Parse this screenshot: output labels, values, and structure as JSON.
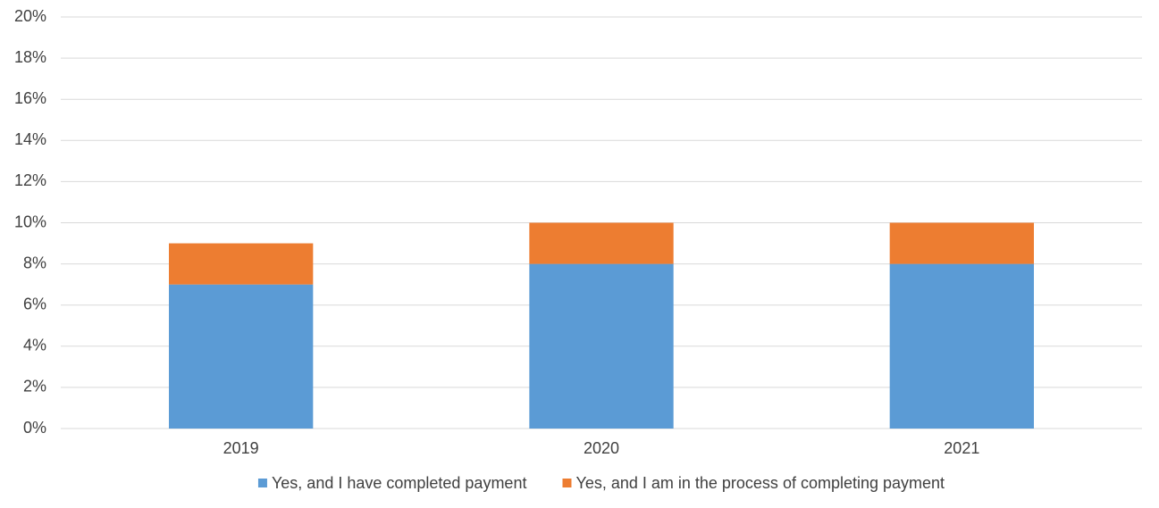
{
  "chart_data": {
    "type": "stacked_bar",
    "categories": [
      "2019",
      "2020",
      "2021"
    ],
    "series": [
      {
        "name": "Yes, and I have completed payment",
        "color": "#5b9bd5",
        "values": [
          7,
          8,
          8
        ]
      },
      {
        "name": "Yes, and I am in the process of completing payment",
        "color": "#ed7d31",
        "values": [
          2,
          2,
          2
        ]
      }
    ],
    "ylim": [
      0,
      20
    ],
    "yticks": [
      {
        "value": 0,
        "label": "0%"
      },
      {
        "value": 2,
        "label": "2%"
      },
      {
        "value": 4,
        "label": "4%"
      },
      {
        "value": 6,
        "label": "6%"
      },
      {
        "value": 8,
        "label": "8%"
      },
      {
        "value": 10,
        "label": "10%"
      },
      {
        "value": 12,
        "label": "12%"
      },
      {
        "value": 14,
        "label": "14%"
      },
      {
        "value": 16,
        "label": "16%"
      },
      {
        "value": 18,
        "label": "18%"
      },
      {
        "value": 20,
        "label": "20%"
      }
    ],
    "grid": true,
    "legend": "bottom"
  }
}
